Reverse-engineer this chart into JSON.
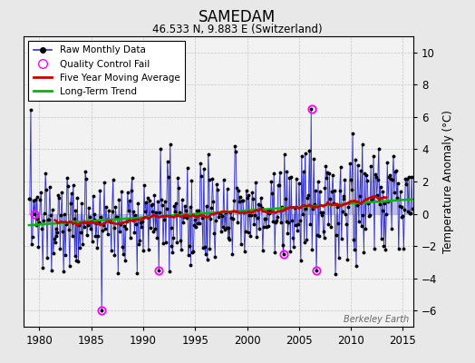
{
  "title": "SAMEDAM",
  "subtitle": "46.533 N, 9.883 E (Switzerland)",
  "ylabel": "Temperature Anomaly (°C)",
  "watermark": "Berkeley Earth",
  "xlim": [
    1978.5,
    2016.0
  ],
  "ylim": [
    -7,
    11
  ],
  "yticks": [
    -6,
    -4,
    -2,
    0,
    2,
    4,
    6,
    8,
    10
  ],
  "xticks": [
    1980,
    1985,
    1990,
    1995,
    2000,
    2005,
    2010,
    2015
  ],
  "bg_color": "#e8e8e8",
  "plot_bg_color": "#f2f2f2",
  "line_color": "#3333cc",
  "line_fill_color": "#8888dd",
  "ma_color": "#cc0000",
  "trend_color": "#00bb00",
  "qc_color": "#ff00ff",
  "seed": 137
}
